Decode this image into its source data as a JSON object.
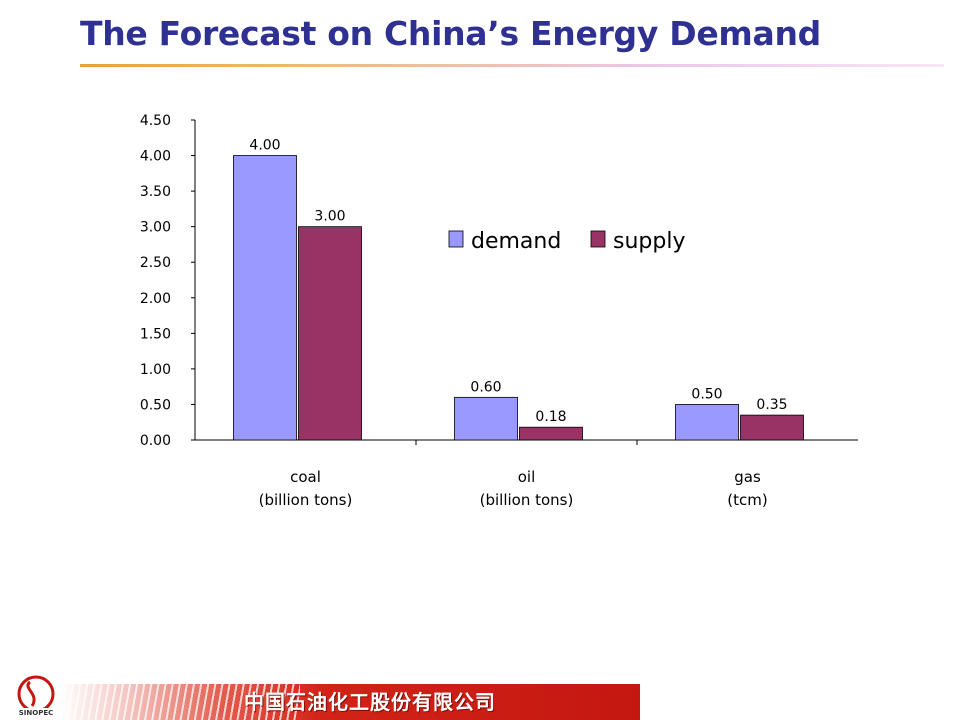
{
  "page": {
    "title": "The Forecast on China’s Energy Demand",
    "footer_company": "中国石油化工股份有限公司",
    "logo_text": "SINOPEC 中国石化"
  },
  "colors": {
    "title": "#2e3192",
    "demand": "#9999ff",
    "supply": "#993366",
    "footer_red": "#d22318"
  },
  "chart_data": {
    "type": "bar",
    "categories": [
      [
        "coal",
        "(billion tons)"
      ],
      [
        "oil",
        "(billion tons)"
      ],
      [
        "gas",
        "(tcm)"
      ]
    ],
    "series": [
      {
        "name": "demand",
        "values": [
          4.0,
          0.6,
          0.5
        ],
        "labels": [
          "4.00",
          "0.60",
          "0.50"
        ],
        "color": "#9999ff"
      },
      {
        "name": "supply",
        "values": [
          3.0,
          0.18,
          0.35
        ],
        "labels": [
          "3.00",
          "0.18",
          "0.35"
        ],
        "color": "#993366"
      }
    ],
    "yticks": [
      "0.00",
      "0.50",
      "1.00",
      "1.50",
      "2.00",
      "2.50",
      "3.00",
      "3.50",
      "4.00",
      "4.50"
    ],
    "ylim": [
      0,
      4.5
    ],
    "grid": false,
    "legend_position": "top-right"
  }
}
